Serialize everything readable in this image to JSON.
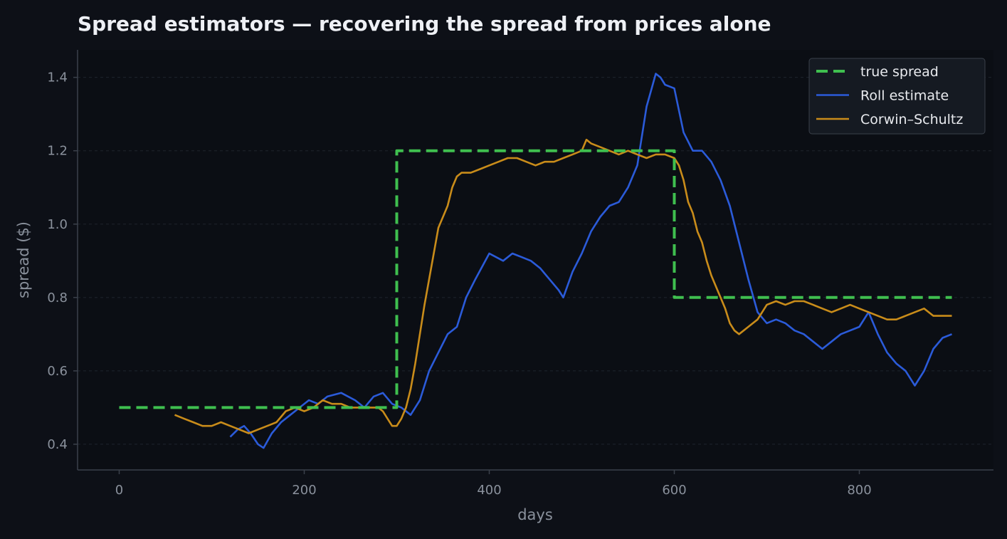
{
  "chart_data": {
    "type": "line",
    "title": "Spread estimators — recovering the spread from prices alone",
    "xlabel": "days",
    "ylabel": "spread ($)",
    "xlim": [
      -45,
      945
    ],
    "ylim": [
      0.33,
      1.475
    ],
    "xticks": [
      0,
      200,
      400,
      600,
      800
    ],
    "yticks": [
      0.4,
      0.6,
      0.8,
      1.0,
      1.2,
      1.4
    ],
    "xtick_labels": [
      "0",
      "200",
      "400",
      "600",
      "800"
    ],
    "ytick_labels": [
      "0.4",
      "0.6",
      "0.8",
      "1.0",
      "1.2",
      "1.4"
    ],
    "grid": "y-dashed",
    "legend_position": "top-right",
    "series": [
      {
        "name": "true spread",
        "color": "#3fbf4f",
        "style": "dashed",
        "x": [
          0,
          300,
          300,
          600,
          600,
          900
        ],
        "y": [
          0.5,
          0.5,
          1.2,
          1.2,
          0.8,
          0.8
        ]
      },
      {
        "name": "Roll estimate",
        "color": "#2b5bd9",
        "style": "solid",
        "x": [
          120,
          128,
          135,
          142,
          150,
          156,
          165,
          175,
          185,
          195,
          205,
          215,
          225,
          240,
          255,
          265,
          275,
          285,
          295,
          305,
          315,
          325,
          335,
          345,
          355,
          365,
          375,
          385,
          400,
          415,
          425,
          435,
          445,
          455,
          465,
          475,
          480,
          490,
          500,
          510,
          520,
          530,
          540,
          550,
          560,
          570,
          580,
          585,
          590,
          600,
          610,
          620,
          630,
          640,
          650,
          660,
          670,
          680,
          690,
          700,
          710,
          720,
          730,
          740,
          750,
          760,
          770,
          780,
          790,
          800,
          810,
          820,
          830,
          840,
          850,
          855,
          860,
          870,
          880,
          890,
          900
        ],
        "y": [
          0.42,
          0.44,
          0.45,
          0.43,
          0.4,
          0.39,
          0.43,
          0.46,
          0.48,
          0.5,
          0.52,
          0.51,
          0.53,
          0.54,
          0.52,
          0.5,
          0.53,
          0.54,
          0.51,
          0.5,
          0.48,
          0.52,
          0.6,
          0.65,
          0.7,
          0.72,
          0.8,
          0.85,
          0.92,
          0.9,
          0.92,
          0.91,
          0.9,
          0.88,
          0.85,
          0.82,
          0.8,
          0.87,
          0.92,
          0.98,
          1.02,
          1.05,
          1.06,
          1.1,
          1.16,
          1.32,
          1.41,
          1.4,
          1.38,
          1.37,
          1.25,
          1.2,
          1.2,
          1.17,
          1.12,
          1.05,
          0.95,
          0.85,
          0.76,
          0.73,
          0.74,
          0.73,
          0.71,
          0.7,
          0.68,
          0.66,
          0.68,
          0.7,
          0.71,
          0.72,
          0.76,
          0.7,
          0.65,
          0.62,
          0.6,
          0.58,
          0.56,
          0.6,
          0.66,
          0.69,
          0.7
        ]
      },
      {
        "name": "Corwin–Schultz",
        "color": "#c98c1a",
        "style": "solid",
        "x": [
          60,
          70,
          80,
          90,
          100,
          110,
          120,
          130,
          140,
          150,
          160,
          170,
          180,
          190,
          200,
          210,
          220,
          230,
          240,
          250,
          260,
          270,
          280,
          285,
          290,
          295,
          300,
          305,
          310,
          315,
          320,
          325,
          330,
          335,
          340,
          345,
          350,
          355,
          360,
          365,
          370,
          380,
          390,
          400,
          410,
          420,
          430,
          440,
          450,
          460,
          470,
          480,
          490,
          500,
          505,
          510,
          520,
          530,
          540,
          550,
          560,
          570,
          580,
          590,
          600,
          605,
          610,
          615,
          620,
          625,
          630,
          635,
          640,
          645,
          650,
          655,
          660,
          665,
          670,
          675,
          680,
          690,
          700,
          710,
          720,
          730,
          740,
          750,
          760,
          770,
          780,
          790,
          800,
          810,
          820,
          830,
          840,
          850,
          860,
          870,
          880,
          890,
          900
        ],
        "y": [
          0.48,
          0.47,
          0.46,
          0.45,
          0.45,
          0.46,
          0.45,
          0.44,
          0.43,
          0.44,
          0.45,
          0.46,
          0.49,
          0.5,
          0.49,
          0.5,
          0.52,
          0.51,
          0.51,
          0.5,
          0.5,
          0.5,
          0.5,
          0.49,
          0.47,
          0.45,
          0.45,
          0.47,
          0.5,
          0.55,
          0.62,
          0.7,
          0.78,
          0.85,
          0.92,
          0.99,
          1.02,
          1.05,
          1.1,
          1.13,
          1.14,
          1.14,
          1.15,
          1.16,
          1.17,
          1.18,
          1.18,
          1.17,
          1.16,
          1.17,
          1.17,
          1.18,
          1.19,
          1.2,
          1.23,
          1.22,
          1.21,
          1.2,
          1.19,
          1.2,
          1.19,
          1.18,
          1.19,
          1.19,
          1.18,
          1.16,
          1.12,
          1.06,
          1.03,
          0.98,
          0.95,
          0.9,
          0.86,
          0.83,
          0.8,
          0.77,
          0.73,
          0.71,
          0.7,
          0.71,
          0.72,
          0.74,
          0.78,
          0.79,
          0.78,
          0.79,
          0.79,
          0.78,
          0.77,
          0.76,
          0.77,
          0.78,
          0.77,
          0.76,
          0.75,
          0.74,
          0.74,
          0.75,
          0.76,
          0.77,
          0.75,
          0.75,
          0.75
        ]
      }
    ]
  }
}
